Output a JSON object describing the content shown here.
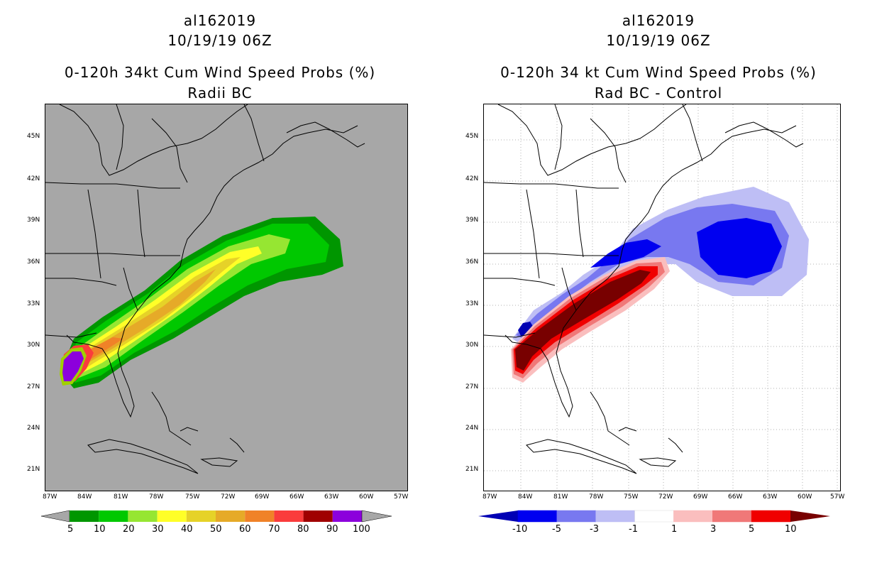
{
  "left": {
    "title_line1": "al162019",
    "title_line2": "10/19/19 06Z",
    "title_line3": "0-120h 34kt Cum Wind Speed Probs (%)",
    "title_line4": "Radii BC",
    "lat_labels": [
      "45N",
      "42N",
      "39N",
      "36N",
      "33N",
      "30N",
      "27N",
      "24N",
      "21N"
    ],
    "lon_labels": [
      "87W",
      "84W",
      "81W",
      "78W",
      "75W",
      "72W",
      "69W",
      "66W",
      "63W",
      "60W",
      "57W"
    ],
    "colorbar": {
      "labels": [
        "5",
        "10",
        "20",
        "30",
        "40",
        "50",
        "60",
        "70",
        "80",
        "90",
        "100"
      ],
      "colors": [
        "#009600",
        "#00c800",
        "#96e632",
        "#ffff28",
        "#e6d228",
        "#e6aa28",
        "#f08228",
        "#fa3c3c",
        "#a00000",
        "#8c00dc"
      ],
      "end_arrow_color": "#a7a7a7"
    }
  },
  "right": {
    "title_line1": "al162019",
    "title_line2": "10/19/19 06Z",
    "title_line3": "0-120h 34 kt Cum Wind Speed Probs (%)",
    "title_line4": "Rad BC - Control",
    "lat_labels": [
      "45N",
      "42N",
      "39N",
      "36N",
      "33N",
      "30N",
      "27N",
      "24N",
      "21N"
    ],
    "lon_labels": [
      "87W",
      "84W",
      "81W",
      "78W",
      "75W",
      "72W",
      "69W",
      "66W",
      "63W",
      "60W",
      "57W"
    ],
    "colorbar": {
      "labels": [
        "-10",
        "-5",
        "-3",
        "-1",
        "1",
        "3",
        "5",
        "10"
      ],
      "colors": [
        "#0000b4",
        "#0000f0",
        "#7878f0",
        "#bebef5",
        "#ffffff",
        "#fabebe",
        "#f07878",
        "#f00000",
        "#780000"
      ]
    }
  }
}
